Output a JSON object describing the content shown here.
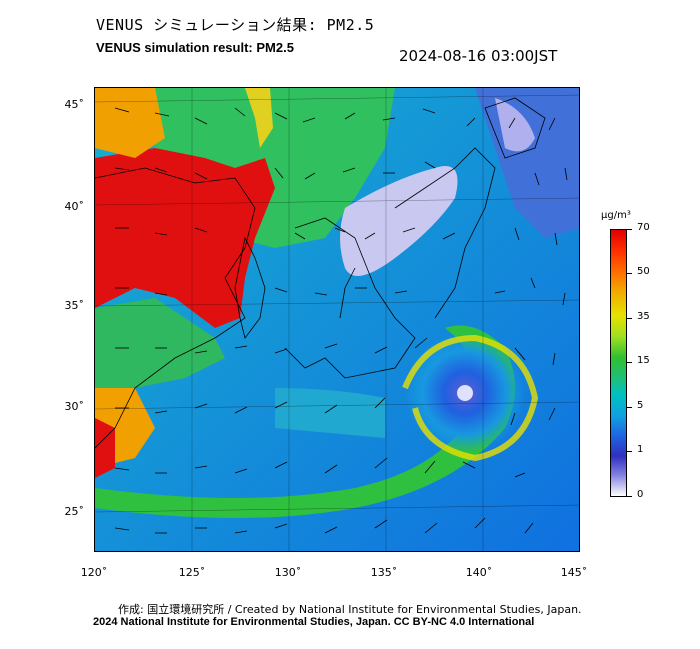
{
  "header": {
    "title_jp": "VENUS シミュレーション結果: PM2.5",
    "title_en": "VENUS simulation result: PM2.5",
    "timestamp": "2024-08-16 03:00JST"
  },
  "map": {
    "lat_labels": [
      "45˚",
      "40˚",
      "35˚",
      "30˚",
      "25˚"
    ],
    "lon_labels": [
      "120˚",
      "125˚",
      "130˚",
      "135˚",
      "140˚",
      "145˚"
    ],
    "field": "PM2.5",
    "features": [
      "wind-vectors",
      "coastlines",
      "typhoon-vortex"
    ]
  },
  "colorbar": {
    "unit": "µg/m³",
    "ticks": [
      "70",
      "50",
      "35",
      "15",
      "5",
      "1",
      "0"
    ],
    "colors": [
      "#e00000",
      "#ff7000",
      "#e8e000",
      "#30c030",
      "#00c0c0",
      "#2060e0",
      "#8080e0",
      "#ffffff"
    ]
  },
  "footer": {
    "credit": "作成: 国立環境研究所 / Created by National Institute for Environmental Studies, Japan.",
    "copyright": "2024 National Institute for Environmental Studies, Japan. CC BY-NC 4.0 International"
  }
}
